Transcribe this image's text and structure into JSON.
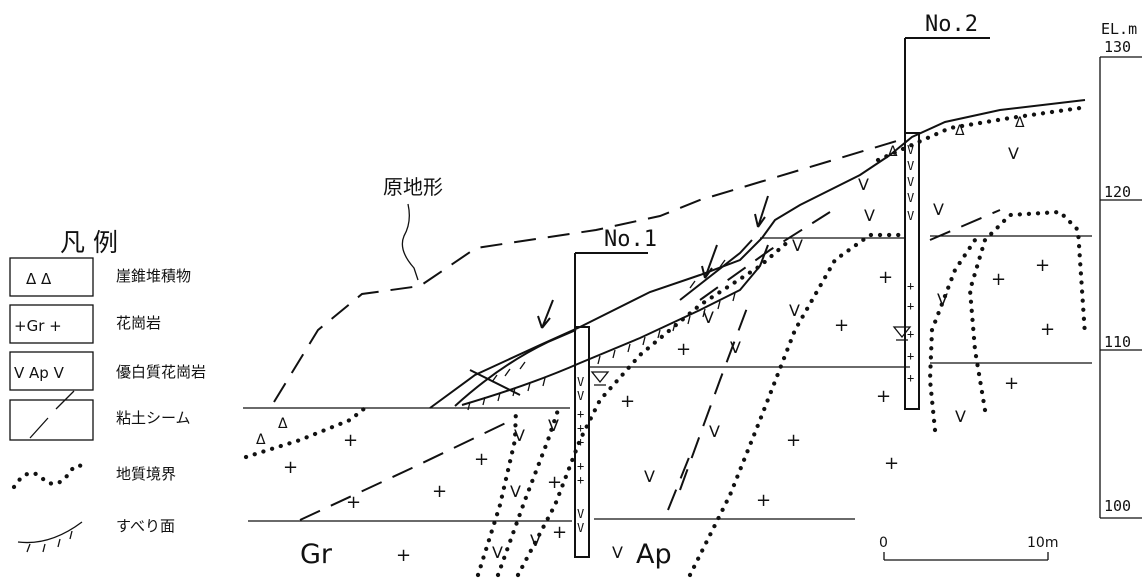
{
  "legend": {
    "title": "凡 例",
    "items": [
      {
        "symbol": "Δ Δ",
        "label": "崖錐堆積物"
      },
      {
        "symbol": "+Gr +",
        "label": "花崗岩"
      },
      {
        "symbol": "V Ap V",
        "label": "優白質花崗岩"
      },
      {
        "symbol": "",
        "label": "粘土シーム"
      },
      {
        "symbol": "",
        "label": "地質境界"
      },
      {
        "symbol": "",
        "label": "すべり面"
      }
    ]
  },
  "labels": {
    "original_terrain": "原地形",
    "borehole_1": "No.1",
    "borehole_2": "No.2",
    "granite": "Gr",
    "leucogranite": "Ap"
  },
  "scale_bar": {
    "start": "0",
    "end": "10m"
  },
  "elevation_axis": {
    "title": "EL.m",
    "ticks": [
      "130",
      "120",
      "110",
      "100"
    ]
  }
}
